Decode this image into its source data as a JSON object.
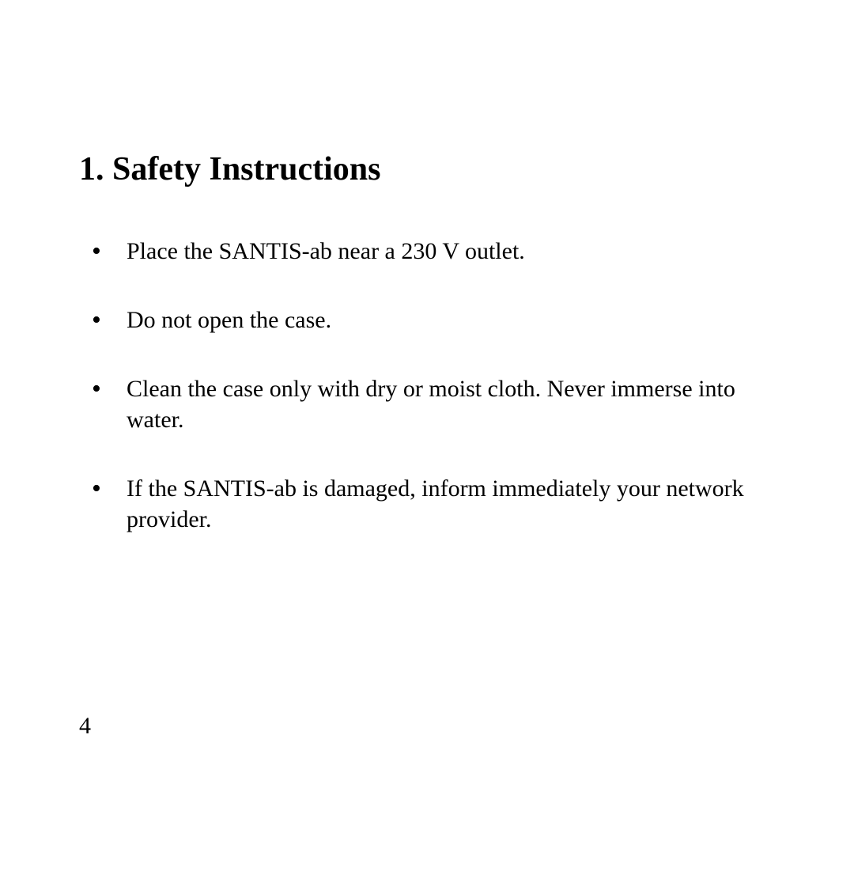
{
  "document": {
    "heading": "1.  Safety Instructions",
    "bullets": [
      "Place the SANTIS-ab near a 230 V outlet.",
      "Do not open the case.",
      "Clean the case only with dry or moist cloth. Never immerse into water.",
      "If the SANTIS-ab is damaged, inform immediately your network provider."
    ],
    "page_number": "4",
    "colors": {
      "background": "#ffffff",
      "text": "#000000"
    },
    "typography": {
      "heading_fontsize": 42,
      "heading_weight": "bold",
      "body_fontsize": 30,
      "font_family": "Times New Roman"
    }
  }
}
